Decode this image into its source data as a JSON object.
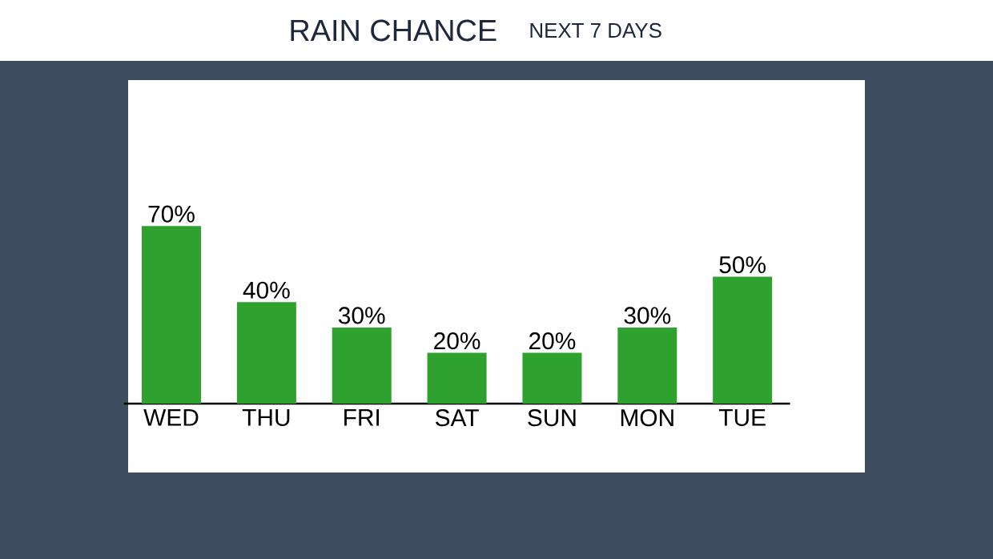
{
  "chart_data": {
    "type": "bar",
    "title": "RAIN CHANCE",
    "subtitle": "NEXT 7 DAYS",
    "categories": [
      "WED",
      "THU",
      "FRI",
      "SAT",
      "SUN",
      "MON",
      "TUE"
    ],
    "values": [
      70,
      40,
      30,
      20,
      20,
      30,
      50
    ],
    "value_labels": [
      "70%",
      "40%",
      "30%",
      "20%",
      "20%",
      "30%",
      "50%"
    ],
    "color": "#2fa12f"
  }
}
